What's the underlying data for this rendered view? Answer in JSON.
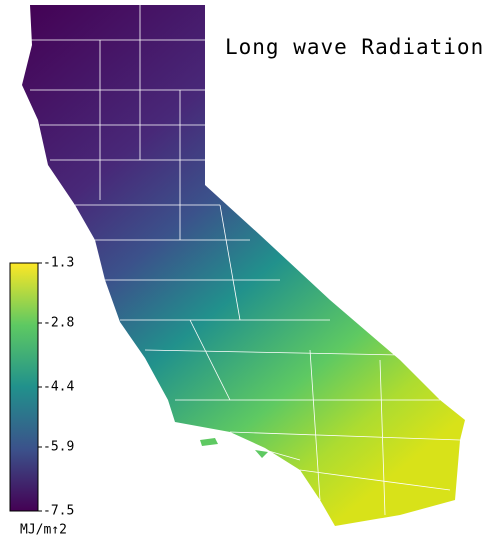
{
  "title": "Long wave Radiation",
  "colorbar": {
    "lim": [
      -7.5,
      -1.3
    ],
    "ticks": [
      -1.3,
      -2.8,
      -4.4,
      -5.9,
      -7.5
    ],
    "unit": "MJ/m↑2"
  }
}
